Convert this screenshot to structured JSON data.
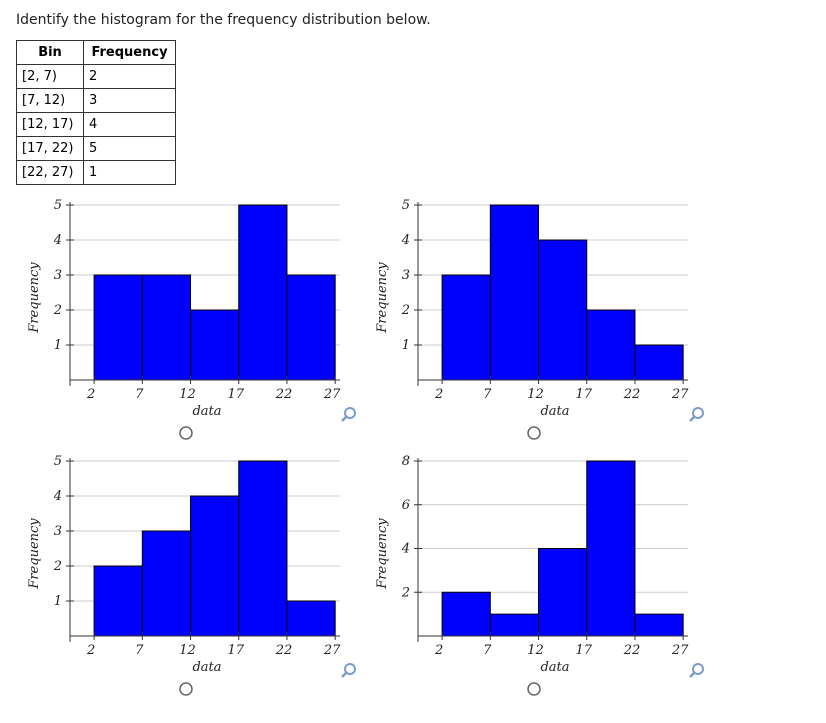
{
  "question": "Identify the histogram for the frequency distribution below.",
  "table": {
    "columns": [
      "Bin",
      "Frequency"
    ],
    "rows": [
      [
        "[2, 7)",
        2
      ],
      [
        "[7, 12)",
        3
      ],
      [
        "[12, 17)",
        4
      ],
      [
        "[17, 22)",
        5
      ],
      [
        "[22, 27)",
        1
      ]
    ]
  },
  "chart_data": [
    {
      "type": "histogram",
      "bins": [
        2,
        7,
        12,
        17,
        22,
        27
      ],
      "values": [
        3,
        3,
        2,
        5,
        3
      ],
      "color": "#0000ff",
      "xlabel": "data",
      "ylabel": "Frequency",
      "xlim": [
        -0.5,
        27.5
      ],
      "xticks": [
        2,
        7,
        12,
        17,
        22,
        27
      ],
      "ylim": [
        0,
        5
      ],
      "yticks": [
        1,
        2,
        3,
        4,
        5
      ],
      "grid": true
    },
    {
      "type": "histogram",
      "bins": [
        2,
        7,
        12,
        17,
        22,
        27
      ],
      "values": [
        3,
        5,
        4,
        2,
        1
      ],
      "color": "#0000ff",
      "xlabel": "data",
      "ylabel": "Frequency",
      "xlim": [
        -0.5,
        27.5
      ],
      "xticks": [
        2,
        7,
        12,
        17,
        22,
        27
      ],
      "ylim": [
        0,
        5
      ],
      "yticks": [
        1,
        2,
        3,
        4,
        5
      ],
      "grid": true
    },
    {
      "type": "histogram",
      "bins": [
        2,
        7,
        12,
        17,
        22,
        27
      ],
      "values": [
        2,
        3,
        4,
        5,
        1
      ],
      "color": "#0000ff",
      "xlabel": "data",
      "ylabel": "Frequency",
      "xlim": [
        -0.5,
        27.5
      ],
      "xticks": [
        2,
        7,
        12,
        17,
        22,
        27
      ],
      "ylim": [
        0,
        5
      ],
      "yticks": [
        1,
        2,
        3,
        4,
        5
      ],
      "grid": true
    },
    {
      "type": "histogram",
      "bins": [
        2,
        7,
        12,
        17,
        22,
        27
      ],
      "values": [
        2,
        1,
        4,
        8,
        1
      ],
      "color": "#0000ff",
      "xlabel": "data",
      "ylabel": "Frequency",
      "xlim": [
        -0.5,
        27.5
      ],
      "xticks": [
        2,
        7,
        12,
        17,
        22,
        27
      ],
      "ylim": [
        0,
        8
      ],
      "yticks": [
        2,
        4,
        6,
        8
      ],
      "grid": true
    }
  ]
}
